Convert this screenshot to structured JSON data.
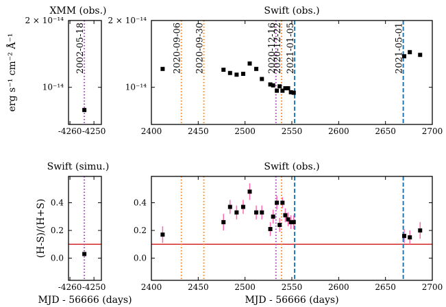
{
  "chart_data": [
    {
      "type": "scatter",
      "title": "XMM (obs.)",
      "ylabel": "erg s⁻¹ cm⁻² Å⁻¹",
      "xlim": [
        -4260.6,
        -4246.9
      ],
      "xticks": [
        -4260,
        -4250
      ],
      "ylim": [
        6.8e-15,
        2e-14
      ],
      "ylog": true,
      "yticks": [
        {
          "value": 1e-14,
          "label": "10⁻¹⁴"
        },
        {
          "value": 2e-14,
          "label": "2 × 10⁻¹⁴"
        }
      ],
      "vlines": [
        {
          "x": -4254,
          "label": "2002-05-18",
          "color": "#9b3fb5",
          "style": "dotted"
        }
      ],
      "x": [
        -4254
      ],
      "series": [
        {
          "color": "#000000",
          "values": [
            7.9e-15
          ]
        }
      ]
    },
    {
      "type": "scatter",
      "title": "Swift (obs.)",
      "xlim": [
        2400,
        2700
      ],
      "xticks": [
        2400,
        2450,
        2500,
        2550,
        2600,
        2650,
        2700
      ],
      "ylim": [
        6.8e-15,
        2e-14
      ],
      "ylog": true,
      "yticks": [
        {
          "value": 1e-14,
          "label": "10⁻¹⁴"
        },
        {
          "value": 2e-14,
          "label": "2 × 10⁻¹⁴"
        }
      ],
      "vlines": [
        {
          "x": 2432,
          "label": "2020-09-06",
          "color": "#ff7f0e",
          "style": "dotted"
        },
        {
          "x": 2456,
          "label": "2020-09-30",
          "color": "#ff7f0e",
          "style": "dotted"
        },
        {
          "x": 2533,
          "label": "2020-12-16",
          "color": "#9b3fb5",
          "style": "dotted"
        },
        {
          "x": 2539,
          "label": "2020-12-22",
          "color": "#ff7f0e",
          "style": "dotted"
        },
        {
          "x": 2553,
          "label": "2021-01-05",
          "color": "#1f77b4",
          "style": "dashed"
        },
        {
          "x": 2669,
          "label": "2021-05-01",
          "color": "#1f77b4",
          "style": "dashed"
        }
      ],
      "x": [
        2412,
        2477,
        2484,
        2491,
        2498,
        2505,
        2512,
        2518,
        2527,
        2530,
        2534,
        2537,
        2540,
        2543,
        2546,
        2549,
        2552,
        2670,
        2676,
        2687
      ],
      "series": [
        {
          "color": "#000000",
          "values": [
            1.21e-14,
            1.2e-14,
            1.16e-14,
            1.14e-14,
            1.15e-14,
            1.28e-14,
            1.21e-14,
            1.09e-14,
            1.03e-14,
            1.02e-14,
            9.65e-15,
            1.01e-14,
            9.65e-15,
            9.9e-15,
            9.9e-15,
            9.5e-15,
            9.45e-15,
            1.38e-14,
            1.44e-14,
            1.4e-14
          ]
        }
      ]
    },
    {
      "type": "scatter",
      "title": "Swift (simu.)",
      "ylabel": "(H-S)/(H+S)",
      "xlabel": "MJD - 56666 (days)",
      "xlim": [
        -4260.6,
        -4246.9
      ],
      "xticks": [
        -4260,
        -4250
      ],
      "ylim": [
        -0.16,
        0.59
      ],
      "yticks": [
        {
          "value": 0,
          "label": "0.0"
        },
        0.2,
        0.4
      ],
      "vlines": [
        {
          "x": -4254,
          "color": "#9b3fb5",
          "style": "dotted"
        }
      ],
      "hline": {
        "y": 0.1,
        "color": "#d62728"
      },
      "x": [
        -4254
      ],
      "series": [
        {
          "color": "#000000",
          "error_color": "#ff69b4",
          "values": [
            0.03
          ],
          "errors": [
            0.015
          ]
        }
      ]
    },
    {
      "type": "scatter",
      "title": "Swift (obs.)",
      "xlabel": "MJD - 56666 (days)",
      "xlim": [
        2400,
        2700
      ],
      "xticks": [
        2400,
        2450,
        2500,
        2550,
        2600,
        2650,
        2700
      ],
      "ylim": [
        -0.16,
        0.59
      ],
      "yticks": [
        {
          "value": 0,
          "label": "0.0"
        },
        0.2,
        0.4
      ],
      "vlines": [
        {
          "x": 2432,
          "color": "#ff7f0e",
          "style": "dotted"
        },
        {
          "x": 2456,
          "color": "#ff7f0e",
          "style": "dotted"
        },
        {
          "x": 2533,
          "color": "#9b3fb5",
          "style": "dotted"
        },
        {
          "x": 2539,
          "color": "#ff7f0e",
          "style": "dotted"
        },
        {
          "x": 2553,
          "color": "#1f77b4",
          "style": "dashed"
        },
        {
          "x": 2669,
          "color": "#1f77b4",
          "style": "dashed"
        }
      ],
      "hline": {
        "y": 0.1,
        "color": "#d62728"
      },
      "x": [
        2412,
        2477,
        2484,
        2491,
        2498,
        2505,
        2512,
        2518,
        2527,
        2530,
        2534,
        2537,
        2540,
        2543,
        2546,
        2549,
        2552,
        2670,
        2676,
        2687
      ],
      "series": [
        {
          "color": "#000000",
          "error_color": "#ff69b4",
          "values": [
            0.17,
            0.26,
            0.37,
            0.33,
            0.37,
            0.48,
            0.33,
            0.33,
            0.21,
            0.3,
            0.4,
            0.24,
            0.4,
            0.31,
            0.28,
            0.26,
            0.26,
            0.16,
            0.15,
            0.2
          ],
          "errors": [
            0.06,
            0.06,
            0.05,
            0.05,
            0.05,
            0.06,
            0.05,
            0.05,
            0.05,
            0.05,
            0.05,
            0.05,
            0.04,
            0.05,
            0.05,
            0.05,
            0.05,
            0.05,
            0.05,
            0.06
          ]
        }
      ]
    }
  ]
}
